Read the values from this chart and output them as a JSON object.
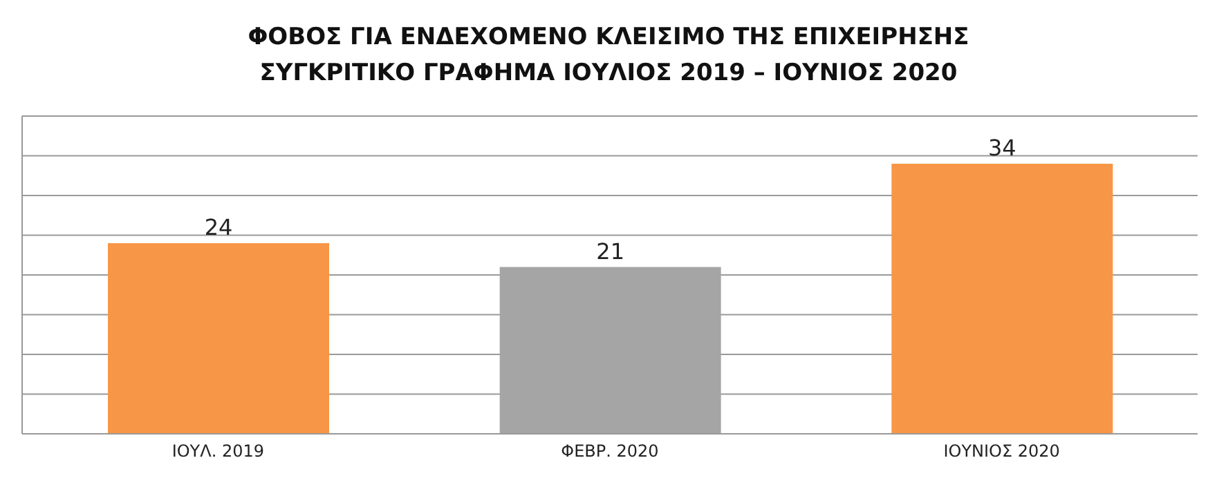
{
  "chart_data": {
    "type": "bar",
    "title": "ΦΟΒΟΣ ΓΙΑ ΕΝΔΕΧΟΜΕΝΟ ΚΛΕΙΣΙΜΟ ΤΗΣ ΕΠΙΧΕΙΡΗΣΗΣ",
    "subtitle": "ΣΥΓΚΡΙΤΙΚΟ ΓΡΑΦΗΜΑ ΙΟΥΛΙΟΣ 2019 – ΙΟΥΝΙΟΣ 2020",
    "categories": [
      "ΙΟΥΛ. 2019",
      "ΦΕΒΡ. 2020",
      "ΙΟΥΝΙΟΣ 2020"
    ],
    "values": [
      24,
      21,
      34
    ],
    "colors": [
      "#f79646",
      "#a5a5a5",
      "#f79646"
    ],
    "ylim": [
      0,
      40
    ],
    "yticks": [
      {
        "value": 0,
        "label": null
      },
      {
        "value": 5,
        "label": null
      },
      {
        "value": 10,
        "label": null
      },
      {
        "value": 15,
        "label": null
      },
      {
        "value": 20,
        "label": null
      },
      {
        "value": 25,
        "label": null
      },
      {
        "value": 30,
        "label": null
      },
      {
        "value": 35,
        "label": null
      },
      {
        "value": 40,
        "label": null
      }
    ],
    "tick_labels": "x",
    "grid": "y",
    "data_labels": true
  }
}
